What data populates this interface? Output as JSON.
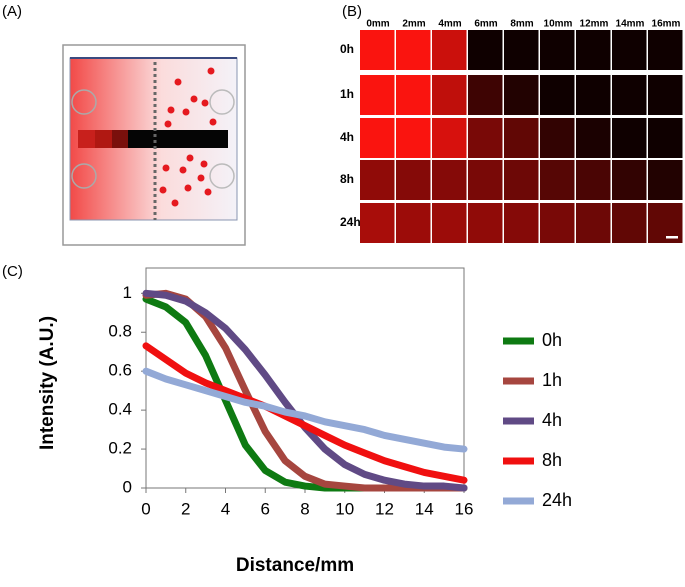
{
  "panel_labels": [
    "(A)",
    "(B)",
    "(C)"
  ],
  "image_grid": {
    "columns": [
      "0mm",
      "2mm",
      "4mm",
      "6mm",
      "8mm",
      "10mm",
      "12mm",
      "14mm",
      "16mm"
    ],
    "rows": [
      "0h",
      "1h",
      "4h",
      "8h",
      "24h"
    ]
  },
  "chart_data": {
    "type": "line",
    "xlabel": "Distance/mm",
    "ylabel": "Intensity (A.U.)",
    "x": [
      0,
      1,
      2,
      3,
      4,
      5,
      6,
      7,
      8,
      9,
      10,
      11,
      12,
      13,
      14,
      15,
      16
    ],
    "xlim": [
      0,
      16
    ],
    "xticks": [
      0,
      2,
      4,
      6,
      8,
      10,
      12,
      14,
      16
    ],
    "ylim": [
      0,
      1.13
    ],
    "yticks": [
      0,
      0.2,
      0.4,
      0.6,
      0.8,
      1
    ],
    "series": [
      {
        "name": "0h",
        "color": "#0e7a12",
        "values": [
          0.97,
          0.93,
          0.85,
          0.68,
          0.45,
          0.22,
          0.09,
          0.03,
          0.01,
          0,
          0,
          0,
          0,
          0,
          0,
          0,
          0
        ]
      },
      {
        "name": "1h",
        "color": "#a6463f",
        "values": [
          0.99,
          1.0,
          0.97,
          0.88,
          0.72,
          0.5,
          0.29,
          0.14,
          0.06,
          0.02,
          0.01,
          0,
          0,
          0,
          0,
          0,
          0
        ]
      },
      {
        "name": "4h",
        "color": "#604a85",
        "values": [
          1.0,
          0.99,
          0.96,
          0.9,
          0.82,
          0.71,
          0.58,
          0.44,
          0.31,
          0.2,
          0.12,
          0.07,
          0.04,
          0.02,
          0.01,
          0.01,
          0
        ]
      },
      {
        "name": "8h",
        "color": "#f01010",
        "values": [
          0.73,
          0.66,
          0.59,
          0.54,
          0.5,
          0.46,
          0.42,
          0.37,
          0.32,
          0.27,
          0.22,
          0.18,
          0.14,
          0.11,
          0.08,
          0.06,
          0.04
        ]
      },
      {
        "name": "24h",
        "color": "#93a9d6",
        "values": [
          0.6,
          0.56,
          0.53,
          0.5,
          0.47,
          0.44,
          0.42,
          0.39,
          0.37,
          0.34,
          0.32,
          0.3,
          0.27,
          0.25,
          0.23,
          0.21,
          0.2
        ]
      }
    ]
  }
}
